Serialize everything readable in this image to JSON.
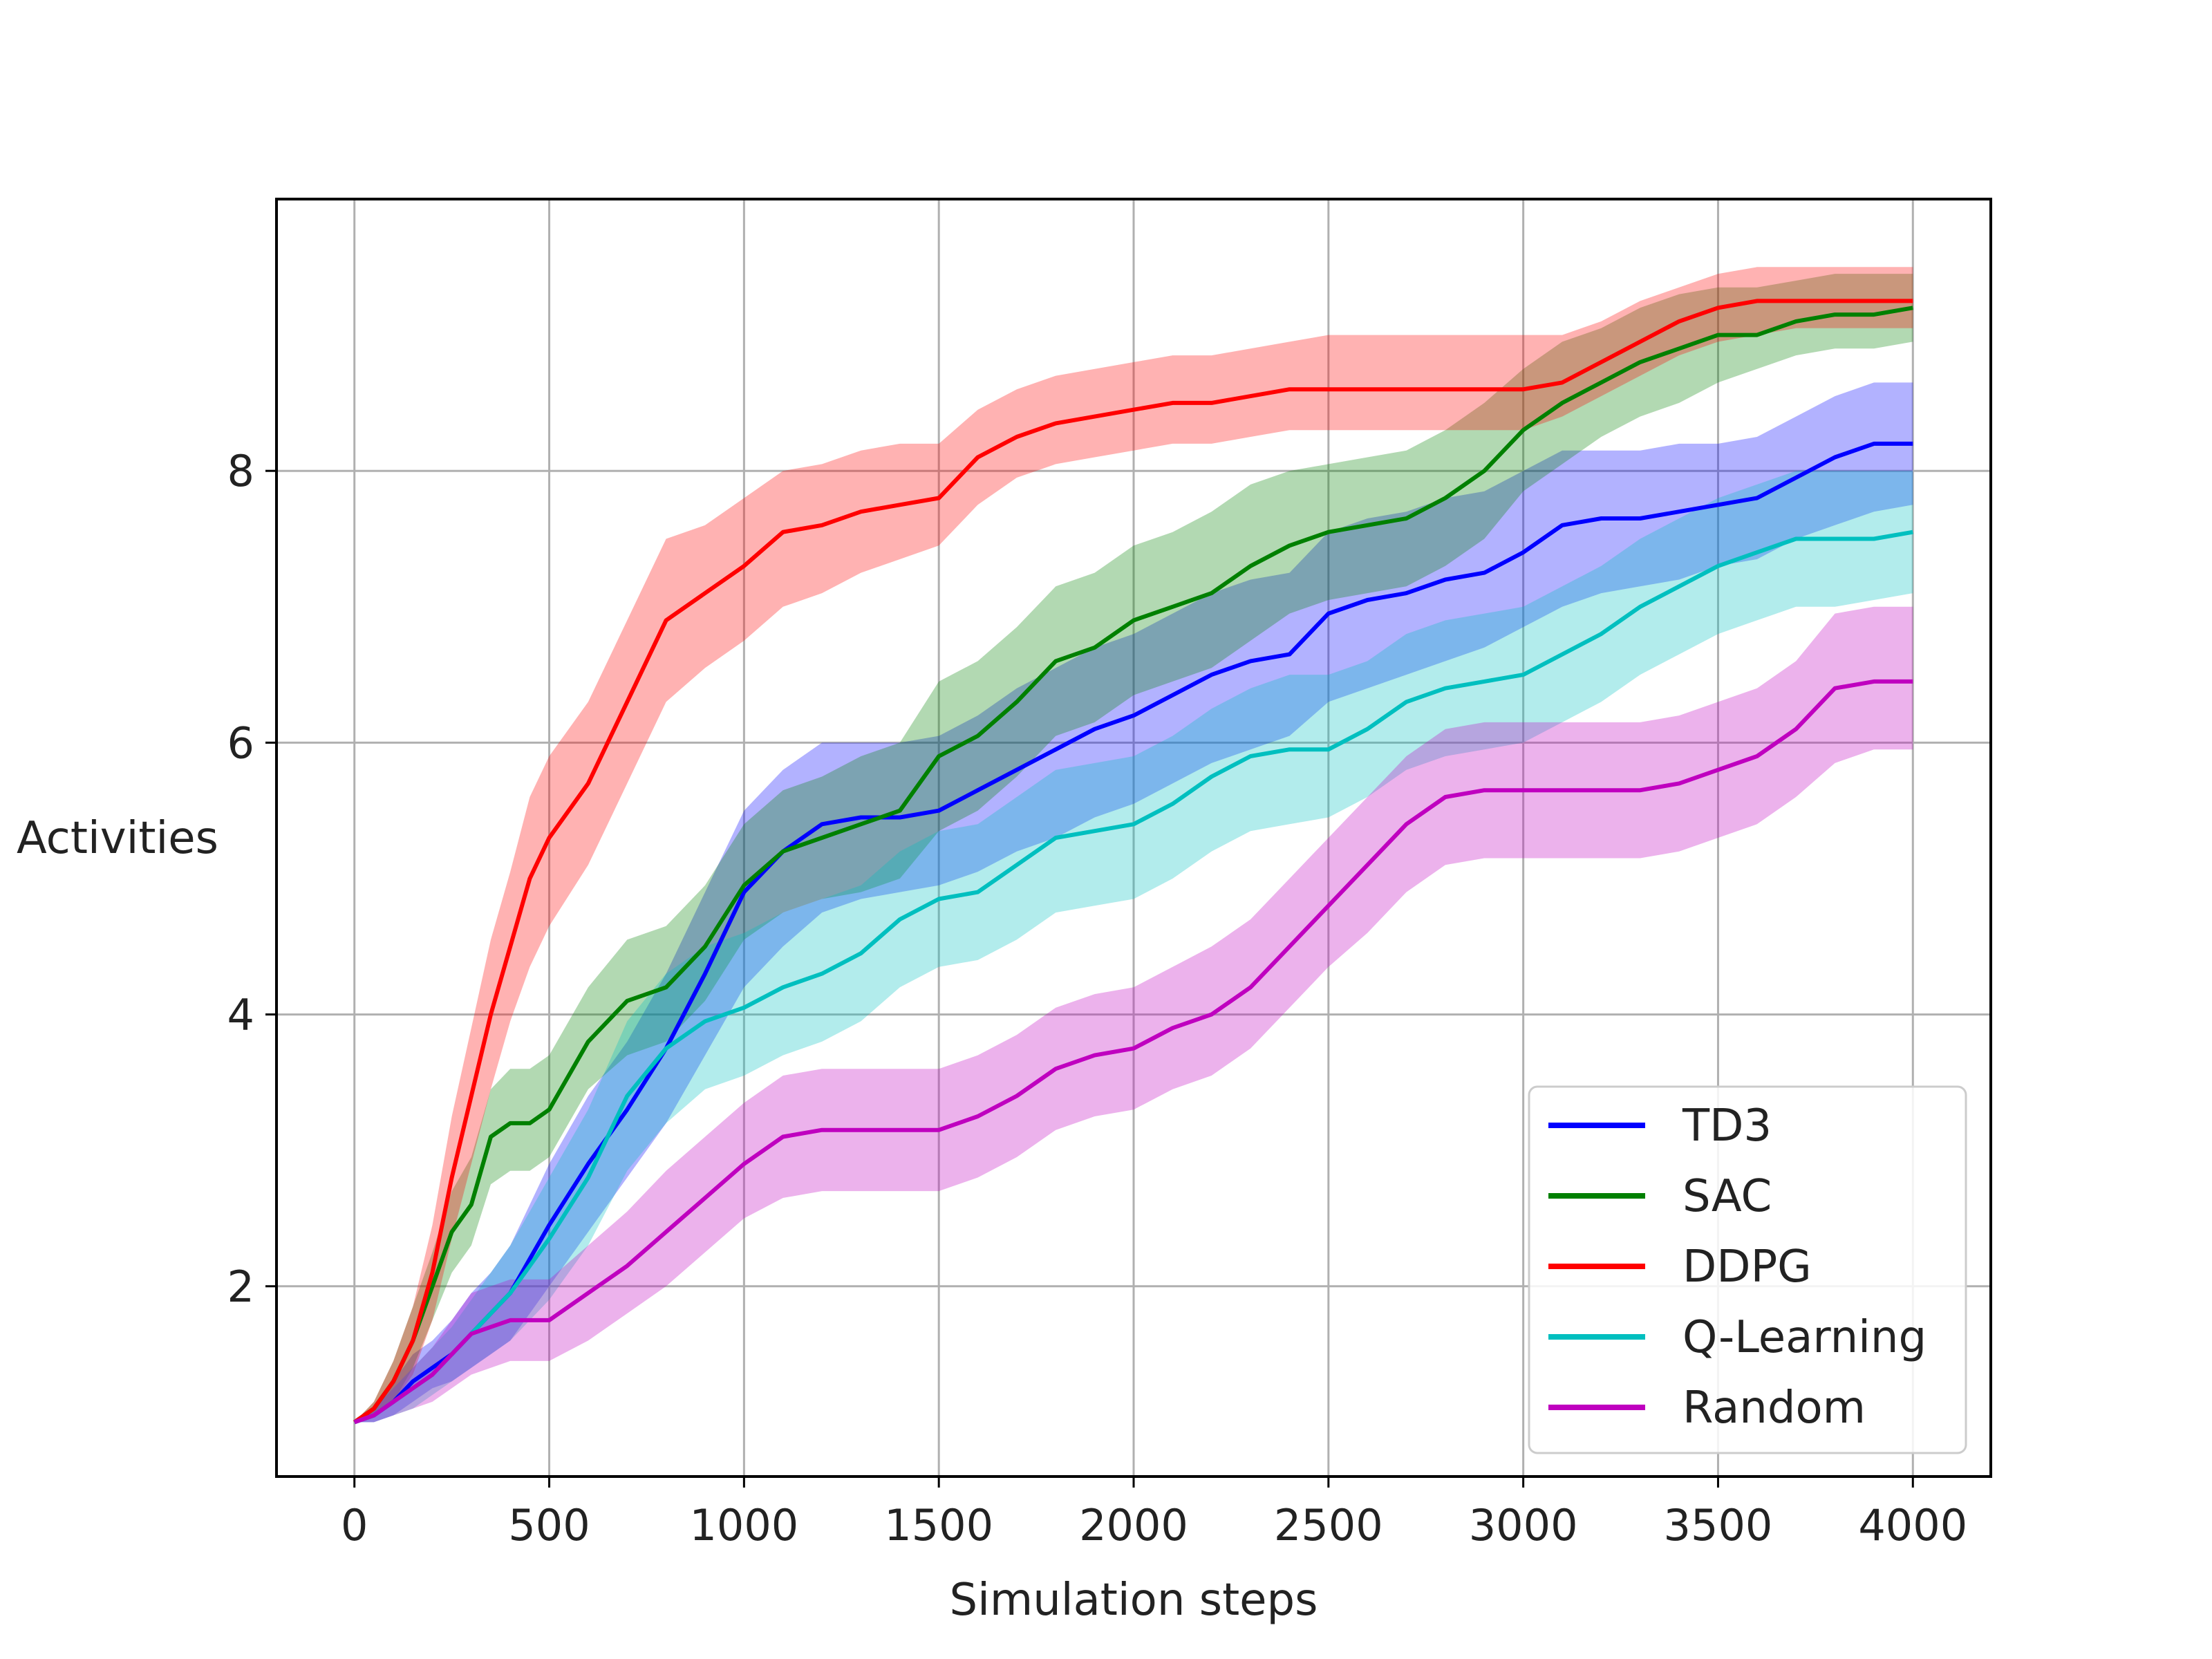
{
  "chart_data": {
    "type": "line",
    "title": "",
    "xlabel": "Simulation steps",
    "ylabel": "Activities",
    "xlim": [
      -200,
      4200
    ],
    "ylim": [
      0.6,
      10.0
    ],
    "xticks": [
      0,
      500,
      1000,
      1500,
      2000,
      2500,
      3000,
      3500,
      4000
    ],
    "xtick_labels": [
      "0",
      "500",
      "1000",
      "1500",
      "2000",
      "2500",
      "3000",
      "3500",
      "4000"
    ],
    "yticks": [
      2,
      4,
      6,
      8
    ],
    "ytick_labels": [
      "2",
      "4",
      "6",
      "8"
    ],
    "grid": true,
    "legend_position": "lower-right",
    "series": [
      {
        "name": "TD3",
        "color": "#0000ff",
        "x": [
          0,
          50,
          100,
          150,
          200,
          250,
          300,
          350,
          400,
          450,
          500,
          600,
          700,
          800,
          900,
          1000,
          1100,
          1200,
          1300,
          1400,
          1500,
          1600,
          1700,
          1800,
          1900,
          2000,
          2100,
          2200,
          2300,
          2400,
          2500,
          2600,
          2700,
          2800,
          2900,
          3000,
          3100,
          3200,
          3300,
          3400,
          3500,
          3600,
          3700,
          3800,
          3900,
          4000
        ],
        "y": [
          1.0,
          1.05,
          1.15,
          1.3,
          1.4,
          1.5,
          1.65,
          1.8,
          1.95,
          2.2,
          2.45,
          2.9,
          3.3,
          3.75,
          4.3,
          4.9,
          5.2,
          5.4,
          5.45,
          5.45,
          5.5,
          5.65,
          5.8,
          5.95,
          6.1,
          6.2,
          6.35,
          6.5,
          6.6,
          6.65,
          6.95,
          7.05,
          7.1,
          7.2,
          7.25,
          7.4,
          7.6,
          7.65,
          7.65,
          7.7,
          7.75,
          7.8,
          7.95,
          8.1,
          8.2,
          8.2
        ],
        "lower": [
          1.0,
          1.0,
          1.05,
          1.15,
          1.25,
          1.3,
          1.4,
          1.5,
          1.6,
          1.8,
          2.0,
          2.4,
          2.8,
          3.2,
          3.7,
          4.2,
          4.5,
          4.75,
          4.85,
          4.9,
          4.95,
          5.05,
          5.2,
          5.3,
          5.45,
          5.55,
          5.7,
          5.85,
          5.95,
          6.05,
          6.3,
          6.4,
          6.5,
          6.6,
          6.7,
          6.85,
          7.0,
          7.1,
          7.15,
          7.2,
          7.3,
          7.35,
          7.5,
          7.6,
          7.7,
          7.75
        ],
        "upper": [
          1.0,
          1.1,
          1.3,
          1.5,
          1.6,
          1.75,
          1.95,
          2.1,
          2.3,
          2.6,
          2.9,
          3.4,
          3.8,
          4.3,
          4.9,
          5.5,
          5.8,
          6.0,
          6.0,
          6.0,
          6.05,
          6.2,
          6.4,
          6.55,
          6.7,
          6.8,
          6.95,
          7.1,
          7.2,
          7.25,
          7.55,
          7.65,
          7.7,
          7.8,
          7.85,
          8.0,
          8.15,
          8.15,
          8.15,
          8.2,
          8.2,
          8.25,
          8.4,
          8.55,
          8.65,
          8.65
        ]
      },
      {
        "name": "SAC",
        "color": "#008000",
        "x": [
          0,
          50,
          100,
          150,
          200,
          250,
          300,
          350,
          400,
          450,
          500,
          600,
          700,
          800,
          900,
          1000,
          1100,
          1200,
          1300,
          1400,
          1500,
          1600,
          1700,
          1800,
          1900,
          2000,
          2100,
          2200,
          2300,
          2400,
          2500,
          2600,
          2700,
          2800,
          2900,
          3000,
          3100,
          3200,
          3300,
          3400,
          3500,
          3600,
          3700,
          3800,
          3900,
          4000
        ],
        "y": [
          1.0,
          1.1,
          1.3,
          1.6,
          2.0,
          2.4,
          2.6,
          3.1,
          3.2,
          3.2,
          3.3,
          3.8,
          4.1,
          4.2,
          4.5,
          4.95,
          5.2,
          5.3,
          5.4,
          5.5,
          5.9,
          6.05,
          6.3,
          6.6,
          6.7,
          6.9,
          7.0,
          7.1,
          7.3,
          7.45,
          7.55,
          7.6,
          7.65,
          7.8,
          8.0,
          8.3,
          8.5,
          8.65,
          8.8,
          8.9,
          9.0,
          9.0,
          9.1,
          9.15,
          9.15,
          9.2
        ],
        "lower": [
          1.0,
          1.05,
          1.15,
          1.4,
          1.75,
          2.1,
          2.3,
          2.75,
          2.85,
          2.85,
          2.95,
          3.45,
          3.7,
          3.8,
          4.1,
          4.55,
          4.75,
          4.85,
          4.9,
          5.0,
          5.35,
          5.5,
          5.75,
          6.05,
          6.15,
          6.35,
          6.45,
          6.55,
          6.75,
          6.95,
          7.05,
          7.1,
          7.15,
          7.3,
          7.5,
          7.85,
          8.05,
          8.25,
          8.4,
          8.5,
          8.65,
          8.75,
          8.85,
          8.9,
          8.9,
          8.95
        ],
        "upper": [
          1.0,
          1.15,
          1.45,
          1.85,
          2.25,
          2.7,
          2.95,
          3.45,
          3.6,
          3.6,
          3.7,
          4.2,
          4.55,
          4.65,
          4.95,
          5.4,
          5.65,
          5.75,
          5.9,
          6.0,
          6.45,
          6.6,
          6.85,
          7.15,
          7.25,
          7.45,
          7.55,
          7.7,
          7.9,
          8.0,
          8.05,
          8.1,
          8.15,
          8.3,
          8.5,
          8.75,
          8.95,
          9.05,
          9.2,
          9.3,
          9.35,
          9.35,
          9.4,
          9.45,
          9.45,
          9.45
        ]
      },
      {
        "name": "DDPG",
        "color": "#ff0000",
        "x": [
          0,
          50,
          100,
          150,
          200,
          250,
          300,
          350,
          400,
          450,
          500,
          600,
          700,
          800,
          900,
          1000,
          1100,
          1200,
          1300,
          1400,
          1500,
          1600,
          1700,
          1800,
          1900,
          2000,
          2100,
          2200,
          2300,
          2400,
          2500,
          2600,
          2700,
          2800,
          2900,
          3000,
          3100,
          3200,
          3300,
          3400,
          3500,
          3600,
          3700,
          3800,
          3900,
          4000
        ],
        "y": [
          1.0,
          1.1,
          1.3,
          1.6,
          2.1,
          2.8,
          3.4,
          4.0,
          4.5,
          5.0,
          5.3,
          5.7,
          6.3,
          6.9,
          7.1,
          7.3,
          7.55,
          7.6,
          7.7,
          7.75,
          7.8,
          8.1,
          8.25,
          8.35,
          8.4,
          8.45,
          8.5,
          8.5,
          8.55,
          8.6,
          8.6,
          8.6,
          8.6,
          8.6,
          8.6,
          8.6,
          8.65,
          8.8,
          8.95,
          9.1,
          9.2,
          9.25,
          9.25,
          9.25,
          9.25,
          9.25
        ],
        "lower": [
          1.0,
          1.05,
          1.15,
          1.35,
          1.75,
          2.35,
          2.9,
          3.45,
          3.95,
          4.35,
          4.65,
          5.1,
          5.7,
          6.3,
          6.55,
          6.75,
          7.0,
          7.1,
          7.25,
          7.35,
          7.45,
          7.75,
          7.95,
          8.05,
          8.1,
          8.15,
          8.2,
          8.2,
          8.25,
          8.3,
          8.3,
          8.3,
          8.3,
          8.3,
          8.3,
          8.3,
          8.4,
          8.55,
          8.7,
          8.85,
          8.95,
          9.0,
          9.05,
          9.05,
          9.05,
          9.05
        ],
        "upper": [
          1.0,
          1.15,
          1.45,
          1.85,
          2.45,
          3.25,
          3.9,
          4.55,
          5.05,
          5.6,
          5.9,
          6.3,
          6.9,
          7.5,
          7.6,
          7.8,
          8.0,
          8.05,
          8.15,
          8.2,
          8.2,
          8.45,
          8.6,
          8.7,
          8.75,
          8.8,
          8.85,
          8.85,
          8.9,
          8.95,
          9.0,
          9.0,
          9.0,
          9.0,
          9.0,
          9.0,
          9.0,
          9.1,
          9.25,
          9.35,
          9.45,
          9.5,
          9.5,
          9.5,
          9.5,
          9.5
        ]
      },
      {
        "name": "Q-Learning",
        "color": "#00bfbf",
        "x": [
          0,
          50,
          100,
          150,
          200,
          250,
          300,
          350,
          400,
          450,
          500,
          600,
          700,
          800,
          900,
          1000,
          1100,
          1200,
          1300,
          1400,
          1500,
          1600,
          1700,
          1800,
          1900,
          2000,
          2100,
          2200,
          2300,
          2400,
          2500,
          2600,
          2700,
          2800,
          2900,
          3000,
          3100,
          3200,
          3300,
          3400,
          3500,
          3600,
          3700,
          3800,
          3900,
          4000
        ],
        "y": [
          1.0,
          1.05,
          1.15,
          1.25,
          1.35,
          1.5,
          1.65,
          1.8,
          1.95,
          2.15,
          2.35,
          2.8,
          3.4,
          3.75,
          3.95,
          4.05,
          4.2,
          4.3,
          4.45,
          4.7,
          4.85,
          4.9,
          5.1,
          5.3,
          5.35,
          5.4,
          5.55,
          5.75,
          5.9,
          5.95,
          5.95,
          6.1,
          6.3,
          6.4,
          6.45,
          6.5,
          6.65,
          6.8,
          7.0,
          7.15,
          7.3,
          7.4,
          7.5,
          7.5,
          7.5,
          7.55
        ],
        "lower": [
          1.0,
          1.0,
          1.05,
          1.1,
          1.2,
          1.3,
          1.4,
          1.5,
          1.6,
          1.75,
          1.9,
          2.3,
          2.85,
          3.2,
          3.45,
          3.55,
          3.7,
          3.8,
          3.95,
          4.2,
          4.35,
          4.4,
          4.55,
          4.75,
          4.8,
          4.85,
          5.0,
          5.2,
          5.35,
          5.4,
          5.45,
          5.6,
          5.8,
          5.9,
          5.95,
          6.0,
          6.15,
          6.3,
          6.5,
          6.65,
          6.8,
          6.9,
          7.0,
          7.0,
          7.05,
          7.1
        ],
        "upper": [
          1.0,
          1.1,
          1.25,
          1.4,
          1.55,
          1.7,
          1.9,
          2.1,
          2.3,
          2.55,
          2.8,
          3.3,
          3.95,
          4.3,
          4.5,
          4.6,
          4.75,
          4.85,
          4.95,
          5.2,
          5.35,
          5.4,
          5.6,
          5.8,
          5.85,
          5.9,
          6.05,
          6.25,
          6.4,
          6.5,
          6.5,
          6.6,
          6.8,
          6.9,
          6.95,
          7.0,
          7.15,
          7.3,
          7.5,
          7.65,
          7.8,
          7.9,
          8.0,
          8.0,
          8.0,
          8.0
        ]
      },
      {
        "name": "Random",
        "color": "#bf00bf",
        "x": [
          0,
          50,
          100,
          150,
          200,
          250,
          300,
          350,
          400,
          450,
          500,
          600,
          700,
          800,
          900,
          1000,
          1100,
          1200,
          1300,
          1400,
          1500,
          1600,
          1700,
          1800,
          1900,
          2000,
          2100,
          2200,
          2300,
          2400,
          2500,
          2600,
          2700,
          2800,
          2900,
          3000,
          3100,
          3200,
          3300,
          3400,
          3500,
          3600,
          3700,
          3800,
          3900,
          4000
        ],
        "y": [
          1.0,
          1.05,
          1.15,
          1.25,
          1.35,
          1.5,
          1.65,
          1.7,
          1.75,
          1.75,
          1.75,
          1.95,
          2.15,
          2.4,
          2.65,
          2.9,
          3.1,
          3.15,
          3.15,
          3.15,
          3.15,
          3.25,
          3.4,
          3.6,
          3.7,
          3.75,
          3.9,
          4.0,
          4.2,
          4.5,
          4.8,
          5.1,
          5.4,
          5.6,
          5.65,
          5.65,
          5.65,
          5.65,
          5.65,
          5.7,
          5.8,
          5.9,
          6.1,
          6.4,
          6.45,
          6.45
        ],
        "lower": [
          1.0,
          1.0,
          1.05,
          1.1,
          1.15,
          1.25,
          1.35,
          1.4,
          1.45,
          1.45,
          1.45,
          1.6,
          1.8,
          2.0,
          2.25,
          2.5,
          2.65,
          2.7,
          2.7,
          2.7,
          2.7,
          2.8,
          2.95,
          3.15,
          3.25,
          3.3,
          3.45,
          3.55,
          3.75,
          4.05,
          4.35,
          4.6,
          4.9,
          5.1,
          5.15,
          5.15,
          5.15,
          5.15,
          5.15,
          5.2,
          5.3,
          5.4,
          5.6,
          5.85,
          5.95,
          5.95
        ],
        "upper": [
          1.0,
          1.1,
          1.25,
          1.4,
          1.55,
          1.75,
          1.95,
          2.0,
          2.05,
          2.05,
          2.05,
          2.3,
          2.55,
          2.85,
          3.1,
          3.35,
          3.55,
          3.6,
          3.6,
          3.6,
          3.6,
          3.7,
          3.85,
          4.05,
          4.15,
          4.2,
          4.35,
          4.5,
          4.7,
          5.0,
          5.3,
          5.6,
          5.9,
          6.1,
          6.15,
          6.15,
          6.15,
          6.15,
          6.15,
          6.2,
          6.3,
          6.4,
          6.6,
          6.95,
          7.0,
          7.0
        ]
      }
    ]
  }
}
